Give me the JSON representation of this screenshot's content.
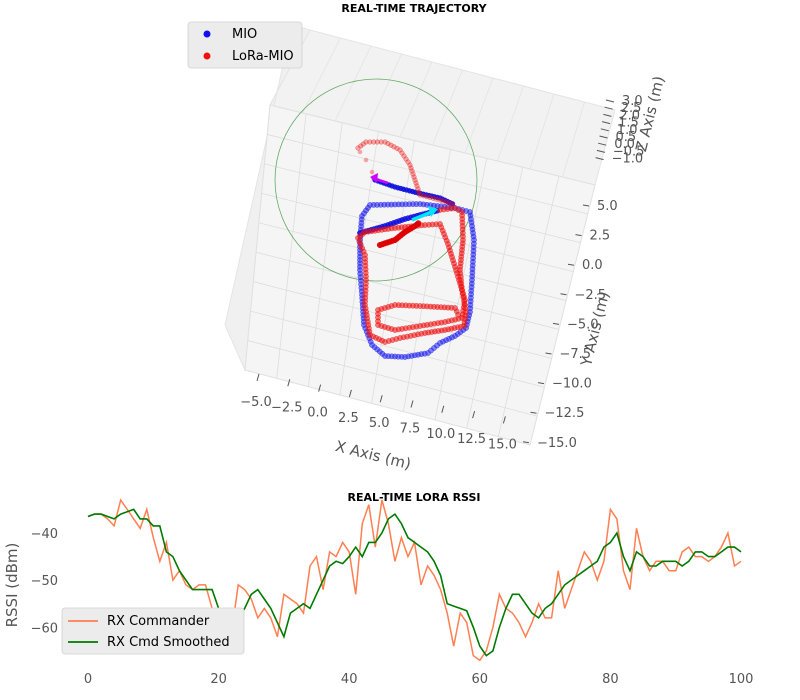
{
  "chart_data": [
    {
      "type": "scatter",
      "title": "REAL-TIME TRAJECTORY",
      "xlabel": "X Axis (m)",
      "ylabel": "Y Axis (m)",
      "zlabel": "Z Axis (m)",
      "x_ticks": [
        "−5.0",
        "−2.5",
        "0.0",
        "2.5",
        "5.0",
        "7.5",
        "10.0",
        "12.5",
        "15.0"
      ],
      "y_ticks": [
        "5.0",
        "2.5",
        "0.0",
        "−2.5",
        "−5.0",
        "−7.5",
        "−10.0",
        "−12.5",
        "−15.0"
      ],
      "z_ticks": [
        "3.0",
        "2.5",
        "2.0",
        "1.5",
        "1.0",
        "0.5",
        "0.0",
        "−0.5",
        "−1.0"
      ],
      "legend": {
        "position": "upper-left",
        "entries": [
          "MIO",
          "LoRa-MIO"
        ]
      },
      "grid": true,
      "colors": {
        "MIO": "#1010ee",
        "LoRa-MIO": "#ee1010",
        "circle": "#66aa66",
        "arrow_mio": "#cc00ff",
        "arrow_lora": "#00e5ff"
      }
    },
    {
      "type": "line",
      "title": "REAL-TIME LORA RSSI",
      "xlabel": "",
      "ylabel": "RSSI (dBm)",
      "xlim": [
        0,
        100
      ],
      "ylim": [
        -68,
        -33
      ],
      "x_ticks": [
        0,
        20,
        40,
        60,
        80,
        100
      ],
      "y_ticks": [
        -40,
        -50,
        -60
      ],
      "y_tick_labels": [
        "−40",
        "−50",
        "−60"
      ],
      "legend": {
        "position": "lower-left"
      },
      "series": [
        {
          "name": "RX Commander",
          "color": "#ff7f50",
          "x": [
            0,
            1,
            2,
            3,
            4,
            5,
            6,
            7,
            8,
            9,
            10,
            11,
            12,
            13,
            14,
            15,
            16,
            17,
            18,
            19,
            20,
            21,
            22,
            23,
            24,
            25,
            26,
            27,
            28,
            29,
            30,
            31,
            32,
            33,
            34,
            35,
            36,
            37,
            38,
            39,
            40,
            41,
            42,
            43,
            44,
            45,
            46,
            47,
            48,
            49,
            50,
            51,
            52,
            53,
            54,
            55,
            56,
            57,
            58,
            59,
            60,
            61,
            62,
            63,
            64,
            65,
            66,
            67,
            68,
            69,
            70,
            71,
            72,
            73,
            74,
            75,
            76,
            77,
            78,
            79,
            80,
            81,
            82,
            83,
            84,
            85,
            86,
            87,
            88,
            89,
            90,
            91,
            92,
            93,
            94,
            95,
            96,
            97,
            98,
            99,
            100
          ],
          "values": [
            -36.5,
            -36,
            -36,
            -37,
            -38.5,
            -33,
            -35,
            -37,
            -39,
            -35,
            -41,
            -46,
            -42,
            -50,
            -48,
            -51,
            -52,
            -51,
            -51,
            -56,
            -59,
            -57,
            -61,
            -51,
            -52,
            -54,
            -58,
            -56,
            -58,
            -62,
            -53,
            -54,
            -55,
            -57,
            -47,
            -45,
            -52,
            -44,
            -45,
            -42,
            -44,
            -53,
            -38,
            -34,
            -43,
            -33,
            -38,
            -46,
            -41,
            -45,
            -42,
            -51,
            -47,
            -49,
            -52,
            -57,
            -64,
            -57,
            -59,
            -66,
            -67,
            -65,
            -60,
            -53,
            -56,
            -57,
            -59,
            -62,
            -59,
            -55,
            -58,
            -58,
            -48,
            -56,
            -52,
            -48,
            -44,
            -46,
            -50,
            -46,
            -35,
            -37,
            -48,
            -52,
            -39,
            -45,
            -48,
            -46,
            -46,
            -48,
            -48,
            -44,
            -43,
            -45,
            -45,
            -46,
            -45,
            -43,
            -40,
            -47,
            -46
          ]
        },
        {
          "name": "RX Cmd Smoothed",
          "color": "#007a00",
          "x": [
            0,
            1,
            2,
            3,
            4,
            5,
            6,
            7,
            8,
            9,
            10,
            11,
            12,
            13,
            14,
            15,
            16,
            17,
            18,
            19,
            20,
            21,
            22,
            23,
            24,
            25,
            26,
            27,
            28,
            29,
            30,
            31,
            32,
            33,
            34,
            35,
            36,
            37,
            38,
            39,
            40,
            41,
            42,
            43,
            44,
            45,
            46,
            47,
            48,
            49,
            50,
            51,
            52,
            53,
            54,
            55,
            56,
            57,
            58,
            59,
            60,
            61,
            62,
            63,
            64,
            65,
            66,
            67,
            68,
            69,
            70,
            71,
            72,
            73,
            74,
            75,
            76,
            77,
            78,
            79,
            80,
            81,
            82,
            83,
            84,
            85,
            86,
            87,
            88,
            89,
            90,
            91,
            92,
            93,
            94,
            95,
            96,
            97,
            98,
            99,
            100
          ],
          "values": [
            -36.5,
            -36,
            -36,
            -36.5,
            -37,
            -36,
            -35.5,
            -35,
            -37,
            -37,
            -38.5,
            -38.5,
            -44,
            -45,
            -48,
            -50,
            -52,
            -52,
            -52,
            -52,
            -56,
            -58,
            -60,
            -58,
            -56,
            -53,
            -52,
            -54,
            -56,
            -59,
            -62,
            -57,
            -56,
            -55,
            -56,
            -53,
            -50,
            -47,
            -46,
            -46.5,
            -45,
            -43,
            -45,
            -42,
            -42,
            -40,
            -37,
            -36,
            -38,
            -41,
            -42,
            -43,
            -44,
            -46,
            -49,
            -55,
            -55.5,
            -56,
            -56.5,
            -60,
            -64,
            -66,
            -65,
            -60,
            -56,
            -53,
            -53,
            -55,
            -57,
            -58,
            -56,
            -55,
            -53,
            -51,
            -50,
            -49,
            -48,
            -47,
            -46,
            -43,
            -42,
            -40,
            -45,
            -48,
            -44,
            -45,
            -47,
            -47,
            -46,
            -46,
            -46,
            -47,
            -46,
            -44,
            -44,
            -45,
            -45,
            -44,
            -43,
            -43,
            -44
          ]
        }
      ]
    }
  ]
}
